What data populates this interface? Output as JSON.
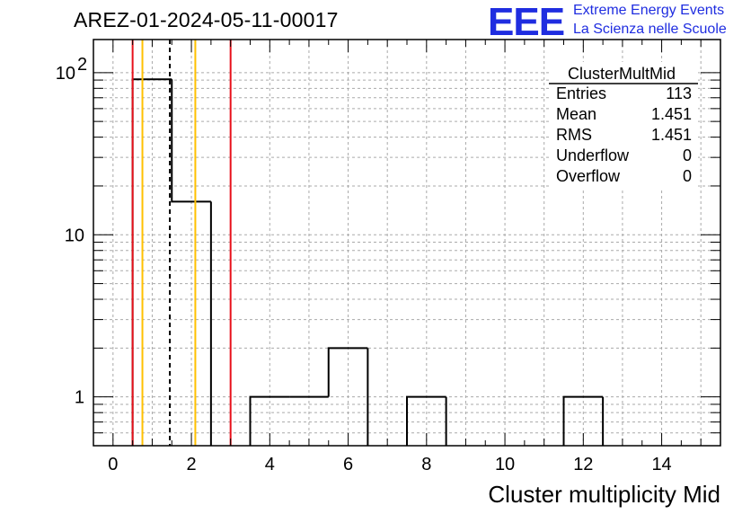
{
  "header": {
    "run_title": "AREZ-01-2024-05-11-00017",
    "logo_text": "EEE",
    "logo_line1": "Extreme Energy Events",
    "logo_line2": "La Scienza nelle Scuole"
  },
  "stats": {
    "name": "ClusterMultMid",
    "rows": [
      {
        "label": "Entries",
        "value": "113"
      },
      {
        "label": "Mean",
        "value": "1.451"
      },
      {
        "label": "RMS",
        "value": "1.451"
      },
      {
        "label": "Underflow",
        "value": "0"
      },
      {
        "label": "Overflow",
        "value": "0"
      }
    ]
  },
  "chart_data": {
    "type": "bar",
    "style": "step-histogram",
    "xlabel": "Cluster multiplicity Mid",
    "ylabel": "",
    "xlim": [
      -0.5,
      15.5
    ],
    "ylim": [
      0.5,
      160
    ],
    "yscale": "log",
    "grid": true,
    "legend": "top-right",
    "x_ticks": [
      0,
      2,
      4,
      6,
      8,
      10,
      12,
      14
    ],
    "y_ticks": [
      {
        "value": 1,
        "label": "1"
      },
      {
        "value": 10,
        "label": "10"
      },
      {
        "value": 100,
        "label": "10",
        "sup": "2"
      }
    ],
    "bin_width": 1,
    "bins": [
      {
        "x": 1,
        "count": 91
      },
      {
        "x": 2,
        "count": 16
      },
      {
        "x": 3,
        "count": 0
      },
      {
        "x": 4,
        "count": 1
      },
      {
        "x": 5,
        "count": 1
      },
      {
        "x": 6,
        "count": 2
      },
      {
        "x": 7,
        "count": 0
      },
      {
        "x": 8,
        "count": 1
      },
      {
        "x": 9,
        "count": 0
      },
      {
        "x": 10,
        "count": 0
      },
      {
        "x": 11,
        "count": 0
      },
      {
        "x": 12,
        "count": 1
      }
    ],
    "reference_lines": [
      {
        "x": 0.5,
        "color": "#e8101a",
        "dash": false
      },
      {
        "x": 0.75,
        "color": "#ffc000",
        "dash": false
      },
      {
        "x": 1.45,
        "color": "#000000",
        "dash": true
      },
      {
        "x": 2.1,
        "color": "#ffc000",
        "dash": false
      },
      {
        "x": 3.0,
        "color": "#e8101a",
        "dash": false
      }
    ]
  }
}
